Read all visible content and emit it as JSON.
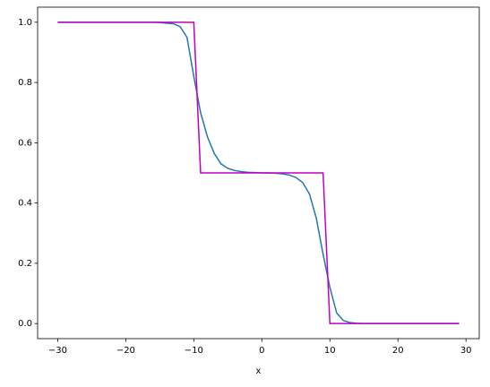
{
  "chart_data": {
    "type": "line",
    "xlabel": "x",
    "series": [
      {
        "color": "#1f77b4",
        "x": [
          -30,
          -29,
          -28,
          -27,
          -26,
          -25,
          -24,
          -23,
          -22,
          -21,
          -20,
          -19,
          -18,
          -17,
          -16,
          -15,
          -14,
          -13,
          -12,
          -11,
          -10,
          -9,
          -8,
          -7,
          -6,
          -5,
          -4,
          -3,
          -2,
          -1,
          0,
          1,
          2,
          3,
          4,
          5,
          6,
          7,
          8,
          9,
          10,
          11,
          12,
          13,
          14,
          15,
          16,
          17,
          18,
          19,
          20,
          21,
          22,
          23,
          24,
          25,
          26,
          27,
          28,
          29
        ],
        "values": [
          1,
          1,
          1,
          1,
          1,
          1,
          1,
          1,
          1,
          1,
          1,
          1,
          1,
          1,
          1,
          0.999,
          0.997,
          0.995,
          0.985,
          0.95,
          0.82,
          0.7,
          0.62,
          0.565,
          0.53,
          0.515,
          0.508,
          0.504,
          0.502,
          0.501,
          0.5,
          0.5,
          0.499,
          0.497,
          0.493,
          0.485,
          0.468,
          0.43,
          0.35,
          0.23,
          0.12,
          0.035,
          0.01,
          0.003,
          0.001,
          0,
          0,
          0,
          0,
          0,
          0,
          0,
          0,
          0,
          0,
          0,
          0,
          0,
          0,
          0
        ]
      },
      {
        "color": "#bf00bf",
        "x": [
          -30,
          -10,
          -9,
          9,
          10,
          29
        ],
        "values": [
          1,
          1,
          0.5,
          0.5,
          0,
          0
        ]
      }
    ],
    "xlim": [
      -32.95,
      31.95
    ],
    "xticks": [
      {
        "value": -30,
        "label": "−30"
      },
      {
        "value": -20,
        "label": "−20"
      },
      {
        "value": -10,
        "label": "−10"
      },
      0,
      10,
      20,
      30
    ],
    "ylim": [
      -0.05,
      1.05
    ],
    "yticks": [
      {
        "value": 0,
        "label": "0.0"
      },
      {
        "value": 0.2,
        "label": "0.2"
      },
      {
        "value": 0.4,
        "label": "0.4"
      },
      {
        "value": 0.6,
        "label": "0.6"
      },
      {
        "value": 0.8,
        "label": "0.8"
      },
      {
        "value": 1,
        "label": "1.0"
      }
    ]
  }
}
